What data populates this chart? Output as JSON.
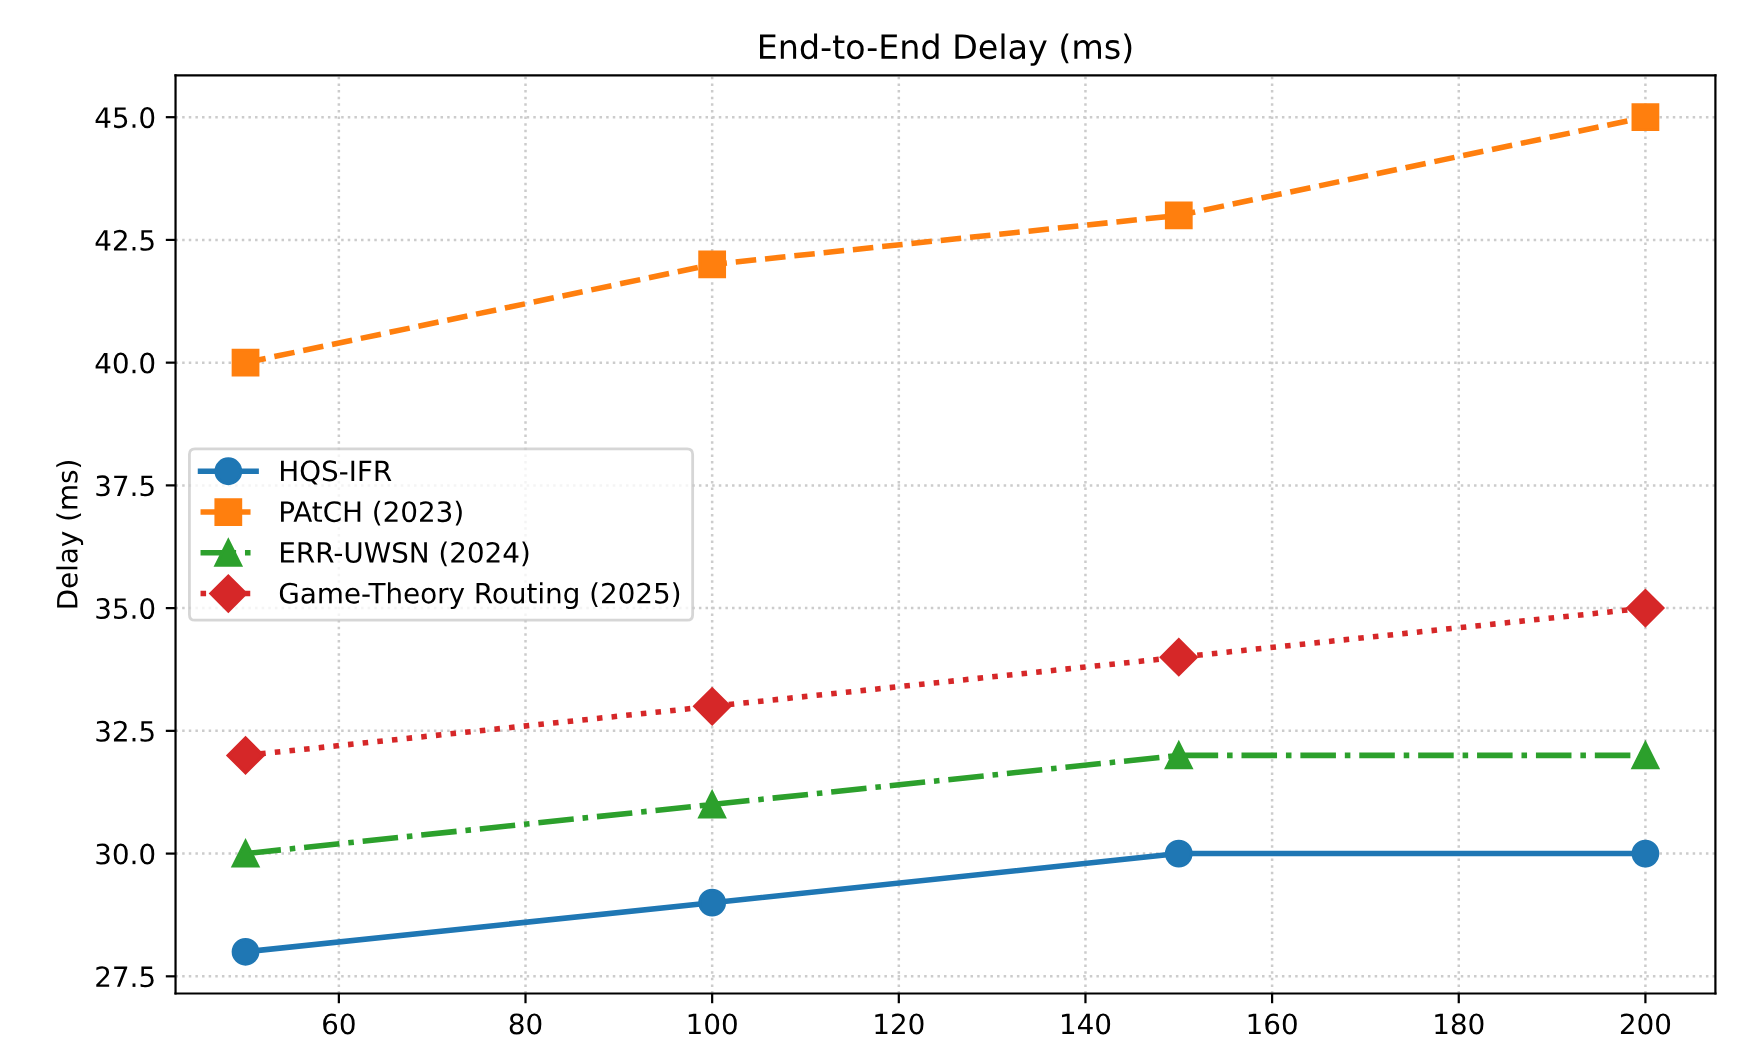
{
  "chart_data": {
    "type": "line",
    "title": "End-to-End Delay (ms)",
    "ylabel": "Delay (ms)",
    "x": [
      50,
      100,
      150,
      200
    ],
    "series": [
      {
        "name": "HQS-IFR",
        "color": "#1f77b4",
        "values": [
          28,
          29,
          30,
          30
        ],
        "marker": "circle",
        "line_style": "solid"
      },
      {
        "name": "PAtCH (2023)",
        "color": "#ff7f0e",
        "values": [
          40,
          42,
          43,
          45
        ],
        "marker": "square",
        "line_style": "dashed"
      },
      {
        "name": "ERR-UWSN (2024)",
        "color": "#2ca02c",
        "values": [
          30,
          31,
          32,
          32
        ],
        "marker": "triangle",
        "line_style": "dashdot"
      },
      {
        "name": "Game-Theory Routing (2025)",
        "color": "#d62728",
        "values": [
          32,
          33,
          34,
          35
        ],
        "marker": "diamond",
        "line_style": "dotted"
      }
    ],
    "xlim": [
      42.5,
      207.5
    ],
    "xticks": [
      60,
      80,
      100,
      120,
      140,
      160,
      180,
      200
    ],
    "ylim": [
      27.15,
      45.85
    ],
    "yticks": [
      {
        "value": 27.5,
        "label": "27.5"
      },
      {
        "value": 30,
        "label": "30.0"
      },
      {
        "value": 32.5,
        "label": "32.5"
      },
      {
        "value": 35,
        "label": "35.0"
      },
      {
        "value": 37.5,
        "label": "37.5"
      },
      {
        "value": 40,
        "label": "40.0"
      },
      {
        "value": 42.5,
        "label": "42.5"
      },
      {
        "value": 45,
        "label": "45.0"
      }
    ],
    "grid": true,
    "legend": "center left"
  }
}
